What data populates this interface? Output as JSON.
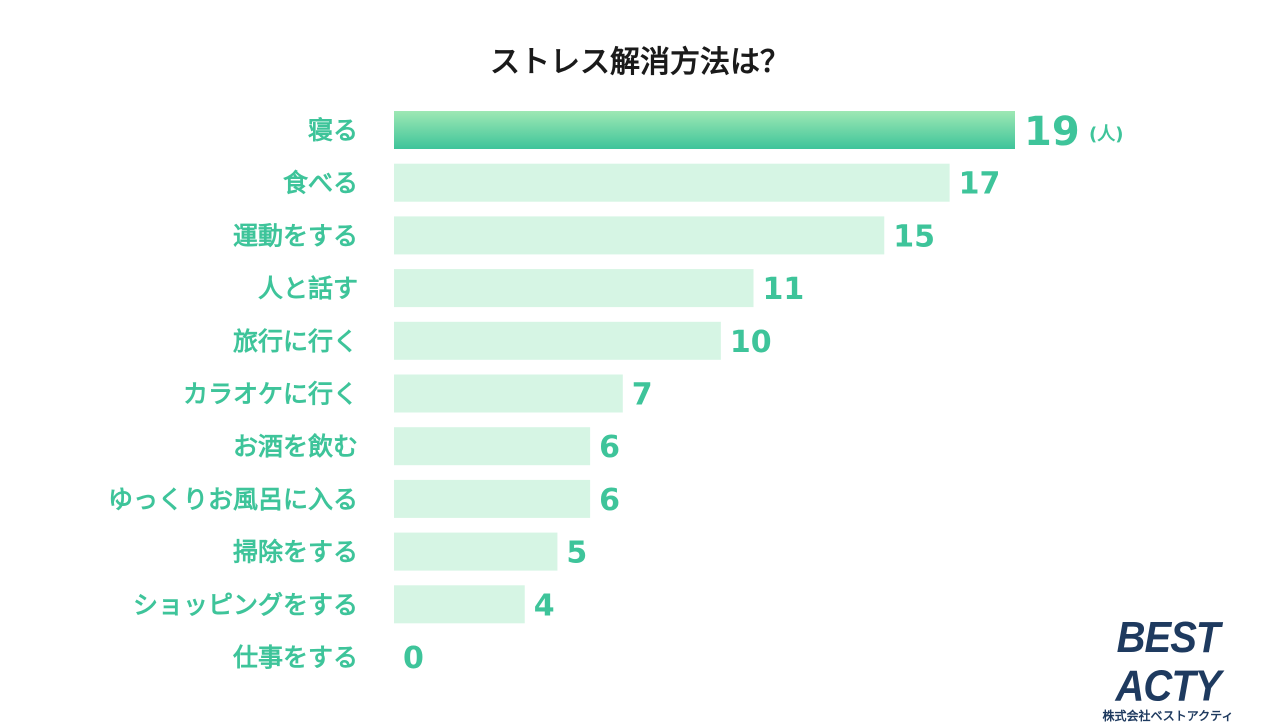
{
  "chart_data": {
    "type": "bar",
    "orientation": "horizontal",
    "title": "ストレス解消方法は？",
    "unit": "(人)",
    "categories": [
      "寝る",
      "食べる",
      "運動をする",
      "人と話す",
      "旅行に行く",
      "カラオケに行く",
      "お酒を飲む",
      "ゆっくりお風呂に入る",
      "掃除をする",
      "ショッピングをする",
      "仕事をする"
    ],
    "values": [
      19,
      17,
      15,
      11,
      10,
      7,
      6,
      6,
      5,
      4,
      0
    ],
    "xlim": [
      0,
      19
    ],
    "grid": false,
    "colors": {
      "highlight_top": "#9ee8b4",
      "highlight_bottom": "#3ec49a",
      "bar": "#d6f5e4",
      "label": "#3ec49a"
    }
  },
  "brand": {
    "name": "BEST ACTY",
    "company": "株式会社ベストアクティ",
    "color": "#1e3a5f"
  }
}
